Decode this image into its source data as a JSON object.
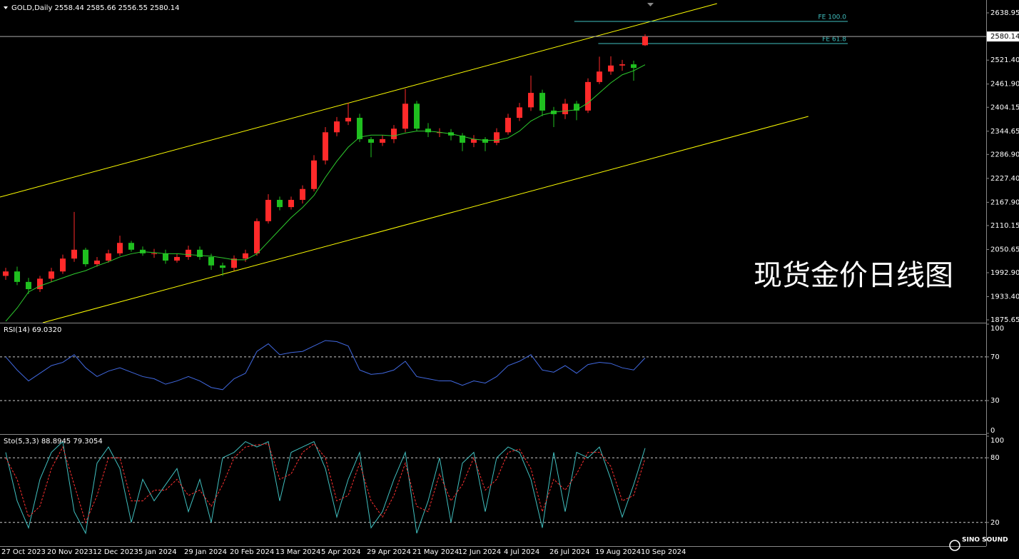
{
  "chart_data": [
    {
      "type": "candlestick",
      "title": "GOLD,Daily  2558.44 2585.66 2556.55 2580.14",
      "categories": [
        "27 Oct 2023",
        null,
        null,
        null,
        "20 Nov 2023",
        null,
        null,
        null,
        "12 Dec 2023",
        null,
        null,
        null,
        "5 Jan 2024",
        null,
        null,
        null,
        "29 Jan 2024",
        null,
        null,
        null,
        "20 Feb 2024",
        null,
        null,
        null,
        "13 Mar 2024",
        null,
        null,
        null,
        "5 Apr 2024",
        null,
        null,
        null,
        "29 Apr 2024",
        null,
        null,
        null,
        "21 May 2024",
        null,
        null,
        null,
        "12 Jun 2024",
        null,
        null,
        null,
        "4 Jul 2024",
        null,
        null,
        null,
        "26 Jul 2024",
        null,
        null,
        null,
        "19 Aug 2024",
        null,
        null,
        null,
        "10 Sep 2024"
      ],
      "open": [
        1985,
        1996,
        1970,
        1952,
        1978,
        1996,
        2028,
        2050,
        2014,
        2023,
        2041,
        2067,
        2050,
        2041,
        2041,
        2023,
        2032,
        2050,
        2032,
        2011,
        2005,
        2028,
        2041,
        2121,
        2174,
        2156,
        2174,
        2201,
        2272,
        2342,
        2369,
        2378,
        2325,
        2316,
        2325,
        2351,
        2413,
        2351,
        2342,
        2342,
        2334,
        2316,
        2325,
        2316,
        2342,
        2378,
        2404,
        2440,
        2396,
        2387,
        2413,
        2396,
        2467,
        2493,
        2508,
        2511,
        2558.44
      ],
      "high": [
        2005,
        2008,
        1980,
        1985,
        2005,
        2038,
        2144,
        2055,
        2032,
        2050,
        2085,
        2072,
        2058,
        2052,
        2050,
        2040,
        2060,
        2058,
        2040,
        2018,
        2036,
        2050,
        2128,
        2188,
        2182,
        2182,
        2210,
        2285,
        2355,
        2380,
        2415,
        2388,
        2330,
        2335,
        2360,
        2450,
        2420,
        2365,
        2352,
        2350,
        2340,
        2335,
        2330,
        2352,
        2388,
        2415,
        2483,
        2448,
        2405,
        2425,
        2420,
        2476,
        2530,
        2531,
        2522,
        2520,
        2585.66
      ],
      "low": [
        1975,
        1962,
        1940,
        1945,
        1970,
        1990,
        2020,
        2008,
        2008,
        2018,
        2035,
        2045,
        2035,
        2030,
        2015,
        2018,
        2025,
        2025,
        2000,
        1985,
        1998,
        2020,
        2035,
        2115,
        2148,
        2150,
        2165,
        2195,
        2262,
        2332,
        2360,
        2318,
        2280,
        2308,
        2315,
        2342,
        2345,
        2330,
        2330,
        2322,
        2295,
        2305,
        2295,
        2310,
        2336,
        2370,
        2395,
        2382,
        2355,
        2375,
        2372,
        2390,
        2462,
        2485,
        2495,
        2470,
        2556.55
      ],
      "close": [
        1996,
        1970,
        1952,
        1978,
        1996,
        2028,
        2050,
        2014,
        2023,
        2041,
        2067,
        2050,
        2041,
        2041,
        2023,
        2032,
        2050,
        2032,
        2011,
        2005,
        2028,
        2041,
        2121,
        2174,
        2156,
        2174,
        2201,
        2272,
        2342,
        2369,
        2378,
        2325,
        2316,
        2325,
        2351,
        2413,
        2351,
        2342,
        2342,
        2334,
        2316,
        2325,
        2316,
        2342,
        2378,
        2404,
        2440,
        2396,
        2387,
        2413,
        2396,
        2467,
        2493,
        2508,
        2511,
        2502,
        2580.14
      ],
      "up_color": "#ff2a2a",
      "down_color": "#1fbf1f",
      "ma_color": "#2ecc2e",
      "ma_values": [
        1872,
        1905,
        1945,
        1960,
        1970,
        1980,
        1990,
        1998,
        2010,
        2020,
        2032,
        2040,
        2045,
        2043,
        2040,
        2040,
        2038,
        2036,
        2034,
        2030,
        2025,
        2025,
        2040,
        2070,
        2100,
        2130,
        2155,
        2185,
        2230,
        2270,
        2305,
        2330,
        2335,
        2335,
        2333,
        2340,
        2345,
        2345,
        2342,
        2338,
        2332,
        2325,
        2322,
        2322,
        2328,
        2345,
        2370,
        2385,
        2392,
        2395,
        2398,
        2415,
        2440,
        2465,
        2485,
        2495,
        2510
      ],
      "ylim": [
        1868.6,
        2670.9
      ],
      "yticks": [
        2638.95,
        {
          "value": 2521.4,
          "label": "2521.40"
        },
        {
          "value": 2461.9,
          "label": "2461.90"
        },
        2404.15,
        2344.65,
        {
          "value": 2286.9,
          "label": "2286.90"
        },
        {
          "value": 2227.4,
          "label": "2227.40"
        },
        {
          "value": 2167.9,
          "label": "2167.90"
        },
        2110.15,
        2050.65,
        {
          "value": 1992.9,
          "label": "1992.90"
        },
        {
          "value": 1933.4,
          "label": "1933.40"
        },
        1875.65
      ],
      "last_price": 2580.14,
      "trendlines": [
        {
          "color": "#ffff00",
          "x": [
            -0.5,
            62.3
          ],
          "y": [
            2181,
            2662
          ]
        },
        {
          "color": "#ffff00",
          "x": [
            3.25,
            70.3
          ],
          "y": [
            1868.6,
            2381.6
          ]
        }
      ],
      "fib_levels": [
        {
          "label": "FE 100.0",
          "price": 2617.6,
          "x": [
            49.8,
            73.75
          ]
        },
        {
          "label": "FE 61.8",
          "price": 2562.6,
          "x": [
            51.9,
            73.75
          ]
        }
      ],
      "fib_color": "#40c0c0",
      "annotation": "现货金价日线图"
    },
    {
      "type": "line",
      "title": "RSI(14) 69.0320",
      "series": [
        {
          "color": "#4169e1",
          "values": [
            70,
            58,
            48,
            55,
            62,
            65,
            72,
            60,
            52,
            57,
            60,
            56,
            52,
            50,
            45,
            48,
            52,
            48,
            42,
            40,
            50,
            55,
            75,
            82,
            72,
            74,
            75,
            80,
            85,
            84,
            80,
            58,
            54,
            55,
            58,
            66,
            52,
            50,
            48,
            48,
            44,
            48,
            46,
            52,
            62,
            66,
            72,
            58,
            56,
            62,
            55,
            63,
            65,
            64,
            60,
            58,
            69.032
          ]
        }
      ],
      "ylim": [
        0,
        100
      ],
      "yticks": [
        100,
        70,
        30,
        0
      ],
      "levels": [
        70,
        30
      ]
    },
    {
      "type": "line",
      "title": "Sto(5,3,3) 88.8945 79.3054",
      "series": [
        {
          "color": "#40c0c0",
          "style": "solid",
          "values": [
            85,
            40,
            15,
            60,
            85,
            95,
            30,
            10,
            75,
            90,
            70,
            20,
            60,
            40,
            55,
            70,
            30,
            60,
            20,
            80,
            85,
            95,
            90,
            95,
            40,
            85,
            90,
            95,
            70,
            25,
            60,
            85,
            15,
            30,
            60,
            85,
            10,
            40,
            80,
            20,
            75,
            85,
            30,
            80,
            90,
            85,
            60,
            15,
            85,
            30,
            85,
            80,
            90,
            60,
            25,
            55,
            88.8945
          ]
        },
        {
          "color": "#ff3030",
          "style": "dashed",
          "values": [
            80,
            60,
            25,
            35,
            70,
            90,
            55,
            20,
            45,
            80,
            80,
            40,
            40,
            50,
            50,
            60,
            45,
            50,
            35,
            55,
            80,
            90,
            92,
            93,
            60,
            65,
            85,
            93,
            80,
            40,
            45,
            75,
            40,
            25,
            45,
            75,
            35,
            30,
            65,
            40,
            55,
            80,
            50,
            60,
            85,
            88,
            70,
            30,
            60,
            50,
            65,
            85,
            85,
            72,
            40,
            45,
            79.3054
          ]
        }
      ],
      "ylim": [
        0,
        100
      ],
      "yticks": [
        100,
        80,
        20
      ],
      "levels": [
        80,
        20
      ]
    }
  ],
  "logo": "SINO SOUND"
}
